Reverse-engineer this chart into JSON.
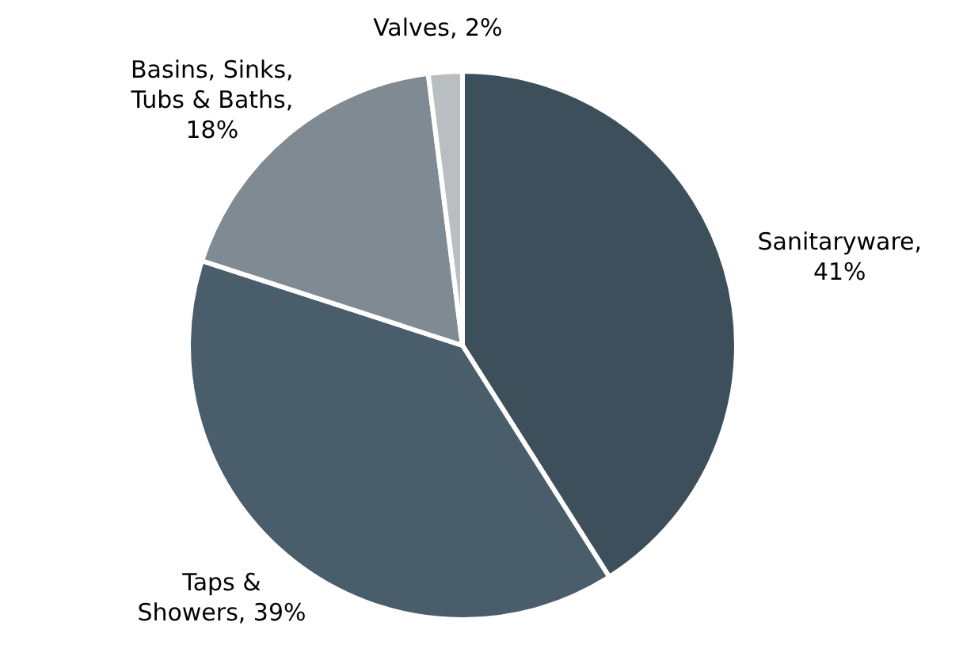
{
  "chart_data": {
    "type": "pie",
    "categories": [
      "Sanitaryware, 41%",
      "Taps & Showers, 39%",
      "Basins, Sinks, Tubs & Baths, 18%",
      "Valves, 2%"
    ],
    "values": [
      41,
      39,
      18,
      2
    ],
    "colors": [
      "#3d4f5a",
      "#4a5d6b",
      "#7f8a93",
      "#b8bec2"
    ]
  }
}
